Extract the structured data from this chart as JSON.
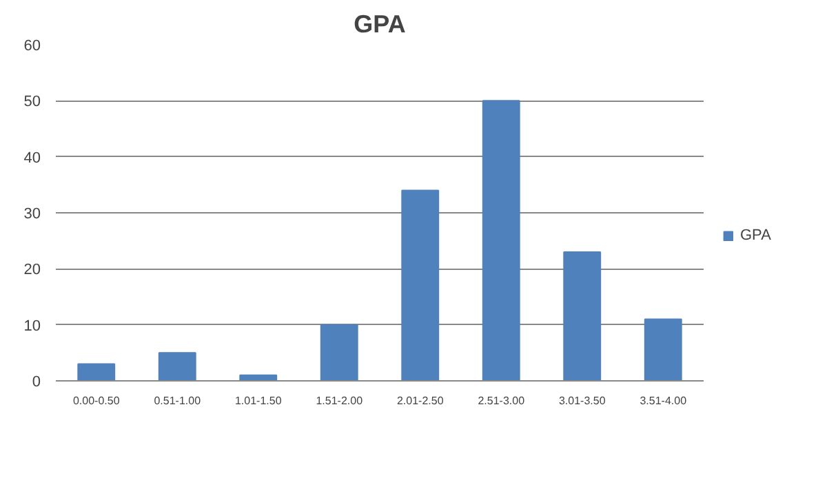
{
  "chart_data": {
    "type": "bar",
    "title": "GPA",
    "categories": [
      "0.00-0.50",
      "0.51-1.00",
      "1.01-1.50",
      "1.51-2.00",
      "2.01-2.50",
      "2.51-3.00",
      "3.01-3.50",
      "3.51-4.00"
    ],
    "series": [
      {
        "name": "GPA",
        "color": "#4f81bd",
        "values": [
          3,
          5,
          1,
          10,
          34,
          50,
          23,
          11
        ]
      }
    ],
    "ylim": [
      0,
      60
    ],
    "yticks": [
      0,
      10,
      20,
      30,
      40,
      50,
      60
    ],
    "grid": "y",
    "legend": "right"
  }
}
